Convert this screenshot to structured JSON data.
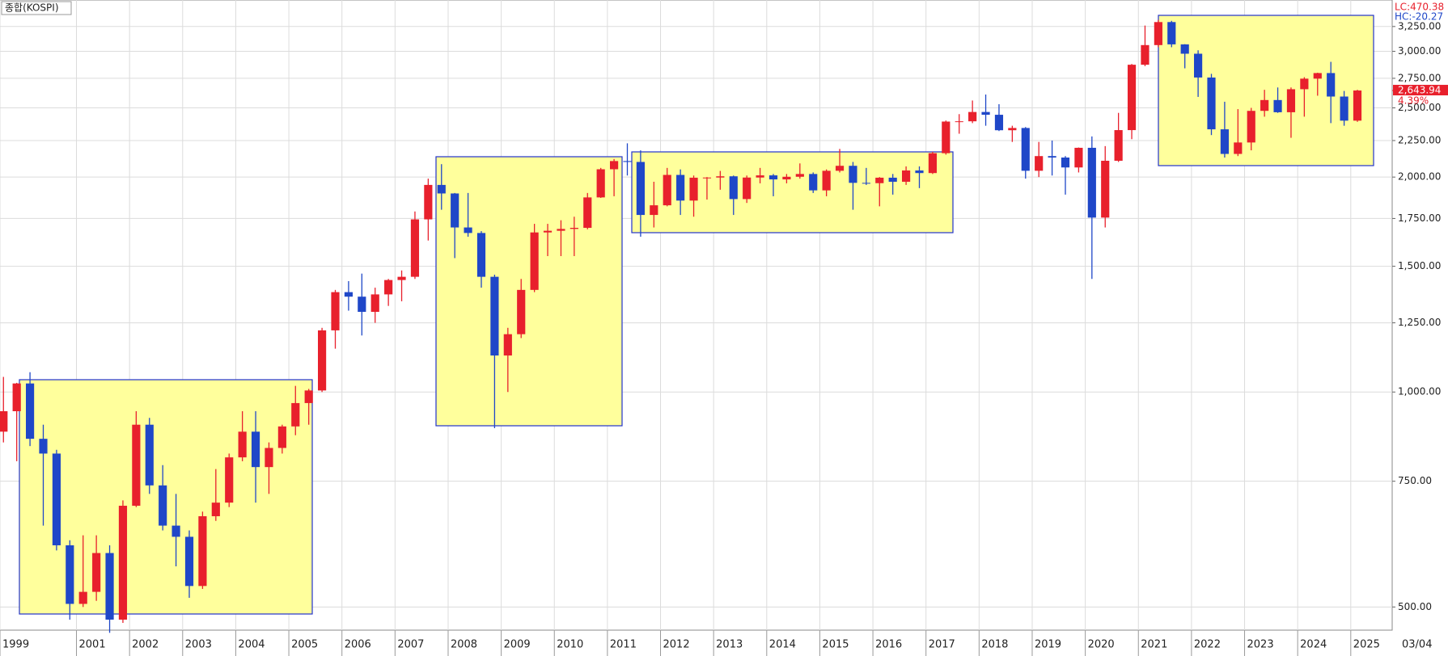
{
  "chart_data": {
    "type": "candlestick",
    "title": "종합(KOSPI)",
    "log_scale": true,
    "grid": true,
    "up_color": "#e8202c",
    "down_color": "#1f47c8",
    "info": [
      "LC:470.38",
      "HC:-20.27"
    ],
    "last": {
      "value": 2643.94,
      "label": "2,643.94",
      "change": "4.39%"
    },
    "date_label": "03/04",
    "xlim": [
      1999.56,
      2025.78
    ],
    "ylim": [
      464,
      3540
    ],
    "yticks": [
      {
        "value": 500,
        "label": "500.00"
      },
      {
        "value": 750,
        "label": "750.00"
      },
      {
        "value": 1000,
        "label": "1,000.00"
      },
      {
        "value": 1250,
        "label": "1,250.00"
      },
      {
        "value": 1500,
        "label": "1,500.00"
      },
      {
        "value": 1750,
        "label": "1,750.00"
      },
      {
        "value": 2000,
        "label": "2,000.00"
      },
      {
        "value": 2250,
        "label": "2,250.00"
      },
      {
        "value": 2500,
        "label": "2,500.00"
      },
      {
        "value": 2750,
        "label": "2,750.00"
      },
      {
        "value": 3000,
        "label": "3,000.00"
      },
      {
        "value": 3250,
        "label": "3,250.00"
      }
    ],
    "xticks": [
      {
        "value": 1999.56,
        "label": "1999"
      },
      2001,
      2002,
      2003,
      2004,
      2005,
      2006,
      2007,
      2008,
      2009,
      2010,
      2011,
      2012,
      2013,
      2014,
      2015,
      2016,
      2017,
      2018,
      2019,
      2020,
      2021,
      2022,
      2023,
      2024,
      2025
    ],
    "x": [
      1999.5,
      1999.75,
      2000,
      2000.25,
      2000.5,
      2000.75,
      2001,
      2001.25,
      2001.5,
      2001.75,
      2002,
      2002.25,
      2002.5,
      2002.75,
      2003,
      2003.25,
      2003.5,
      2003.75,
      2004,
      2004.25,
      2004.5,
      2004.75,
      2005,
      2005.25,
      2005.5,
      2005.75,
      2006,
      2006.25,
      2006.5,
      2006.75,
      2007,
      2007.25,
      2007.5,
      2007.75,
      2008,
      2008.25,
      2008.5,
      2008.75,
      2009,
      2009.25,
      2009.5,
      2009.75,
      2010,
      2010.25,
      2010.5,
      2010.75,
      2011,
      2011.25,
      2011.5,
      2011.75,
      2012,
      2012.25,
      2012.5,
      2012.75,
      2013,
      2013.25,
      2013.5,
      2013.75,
      2014,
      2014.25,
      2014.5,
      2014.75,
      2015,
      2015.25,
      2015.5,
      2015.75,
      2016,
      2016.25,
      2016.5,
      2016.75,
      2017,
      2017.25,
      2017.5,
      2017.75,
      2018,
      2018.25,
      2018.5,
      2018.75,
      2019,
      2019.25,
      2019.5,
      2019.75,
      2020,
      2020.25,
      2020.5,
      2020.75,
      2021,
      2021.25,
      2021.5,
      2021.75,
      2022,
      2022.25,
      2022.5,
      2022.75,
      2023,
      2023.25,
      2023.5,
      2023.75,
      2024,
      2024.25,
      2024.5,
      2024.75,
      2025
    ],
    "open": [
      880,
      940,
      1028,
      860,
      820,
      610,
      505,
      525,
      595,
      480,
      693,
      900,
      740,
      650,
      627,
      535,
      670,
      700,
      810,
      880,
      785,
      835,
      895,
      965,
      1005,
      1220,
      1380,
      1360,
      1295,
      1370,
      1435,
      1450,
      1745,
      1950,
      1897,
      1700,
      1670,
      1450,
      1125,
      1205,
      1390,
      1673,
      1682,
      1692,
      1698,
      1873,
      2051,
      2106,
      2100,
      1770,
      1826,
      2014,
      1854,
      1996,
      1997,
      2005,
      1863,
      1997,
      2011,
      1985,
      2002,
      2020,
      1916,
      2041,
      2074,
      1963,
      1961,
      1996,
      1970,
      2043,
      2026,
      2160,
      2392,
      2394,
      2467,
      2445,
      2326,
      2343,
      2041,
      2140,
      2130,
      2063,
      2198,
      1755,
      2108,
      2327,
      2873,
      3061,
      3297,
      3068,
      2977,
      2757,
      2333,
      2155,
      2236,
      2476,
      2564,
      2465,
      2655,
      2747,
      2797,
      2593,
      2399
    ],
    "high": [
      1050,
      1030,
      1066,
      900,
      830,
      620,
      630,
      630,
      610,
      705,
      940,
      920,
      790,
      720,
      640,
      680,
      780,
      820,
      940,
      940,
      850,
      900,
      1020,
      1010,
      1230,
      1390,
      1430,
      1465,
      1400,
      1440,
      1480,
      1790,
      1990,
      2085,
      1900,
      1900,
      1680,
      1460,
      1230,
      1440,
      1720,
      1720,
      1740,
      1760,
      1900,
      2060,
      2120,
      2230,
      2180,
      1970,
      2060,
      2050,
      2010,
      2000,
      2040,
      2010,
      2010,
      2060,
      2020,
      2020,
      2090,
      2030,
      2050,
      2190,
      2100,
      2060,
      2000,
      2020,
      2070,
      2070,
      2170,
      2400,
      2450,
      2560,
      2610,
      2530,
      2360,
      2350,
      2240,
      2250,
      2140,
      2200,
      2280,
      2210,
      2460,
      2880,
      3260,
      3320,
      3310,
      3070,
      3010,
      2790,
      2550,
      2490,
      2500,
      2650,
      2670,
      2670,
      2760,
      2800,
      2900,
      2640,
      2650
    ],
    "low": [
      850,
      800,
      840,
      650,
      600,
      480,
      500,
      510,
      460,
      475,
      690,
      720,
      640,
      570,
      515,
      530,
      660,
      690,
      800,
      700,
      720,
      820,
      870,
      900,
      1000,
      1150,
      1300,
      1200,
      1250,
      1320,
      1340,
      1440,
      1630,
      1800,
      1540,
      1650,
      1400,
      890,
      1000,
      1190,
      1380,
      1550,
      1550,
      1550,
      1690,
      1870,
      1880,
      2010,
      1650,
      1700,
      1820,
      1770,
      1760,
      1860,
      1920,
      1770,
      1840,
      1960,
      1880,
      1960,
      1990,
      1900,
      1880,
      2030,
      1800,
      1950,
      1820,
      1890,
      1950,
      1930,
      2020,
      2150,
      2300,
      2380,
      2360,
      2320,
      2240,
      1990,
      2000,
      2010,
      1890,
      2030,
      1440,
      1700,
      2100,
      2260,
      2860,
      3040,
      3040,
      2840,
      2590,
      2290,
      2130,
      2140,
      2180,
      2430,
      2460,
      2270,
      2430,
      2600,
      2380,
      2360,
      2390
    ],
    "close": [
      940,
      1028,
      860,
      820,
      610,
      505,
      525,
      595,
      480,
      693,
      900,
      740,
      650,
      627,
      535,
      670,
      700,
      810,
      880,
      785,
      835,
      895,
      965,
      1005,
      1220,
      1380,
      1360,
      1295,
      1370,
      1435,
      1450,
      1745,
      1950,
      1897,
      1700,
      1670,
      1450,
      1125,
      1205,
      1390,
      1673,
      1682,
      1692,
      1698,
      1873,
      2051,
      2106,
      2100,
      1770,
      1826,
      2014,
      1854,
      1996,
      1997,
      2005,
      1863,
      1997,
      2011,
      1985,
      2002,
      2020,
      1916,
      2041,
      2074,
      1963,
      1961,
      1996,
      1970,
      2043,
      2026,
      2160,
      2392,
      2394,
      2467,
      2445,
      2326,
      2343,
      2041,
      2140,
      2130,
      2063,
      2198,
      1755,
      2108,
      2327,
      2873,
      3061,
      3297,
      3068,
      2977,
      2757,
      2333,
      2155,
      2236,
      2476,
      2564,
      2465,
      2655,
      2747,
      2797,
      2593,
      2399,
      2644
    ]
  }
}
